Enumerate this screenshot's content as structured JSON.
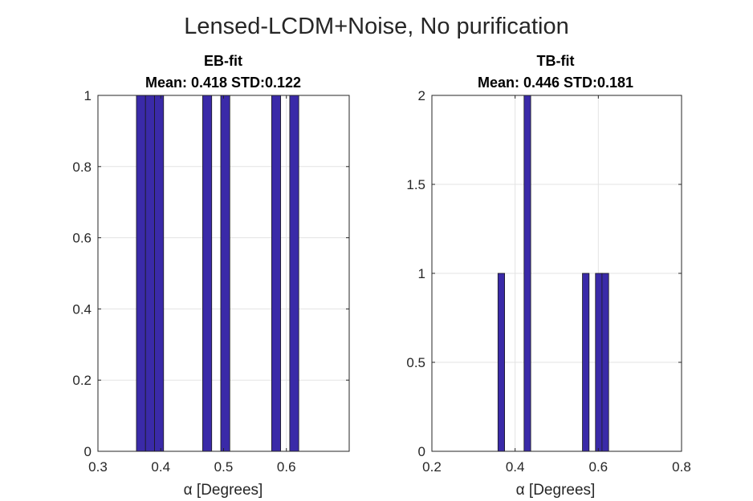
{
  "figure": {
    "suptitle": "Lensed-LCDM+Noise, No purification"
  },
  "chart_data": [
    {
      "type": "bar",
      "title_line1": "EB-fit",
      "title_line2": "Mean: 0.418 STD:0.122",
      "xlabel": "α [Degrees]",
      "ylabel": "",
      "xlim": [
        0.3,
        0.7
      ],
      "ylim": [
        0,
        1
      ],
      "xticks": [
        0.3,
        0.4,
        0.5,
        0.6
      ],
      "xtick_labels": [
        "0.3",
        "0.4",
        "0.5",
        "0.6"
      ],
      "yticks": [
        0,
        0.2,
        0.4,
        0.6,
        0.8,
        1
      ],
      "ytick_labels": [
        "0",
        "0.2",
        "0.4",
        "0.6",
        "0.8",
        "1"
      ],
      "grid": true,
      "bar_color": "#3a2aa8",
      "bin_width": 0.0144,
      "bins": [
        {
          "left": 0.3613,
          "count": 1
        },
        {
          "left": 0.3757,
          "count": 1
        },
        {
          "left": 0.3901,
          "count": 1
        },
        {
          "left": 0.4667,
          "count": 1
        },
        {
          "left": 0.4955,
          "count": 1
        },
        {
          "left": 0.5765,
          "count": 1
        },
        {
          "left": 0.6053,
          "count": 1
        }
      ]
    },
    {
      "type": "bar",
      "title_line1": "TB-fit",
      "title_line2": "Mean: 0.446 STD:0.181",
      "xlabel": "α [Degrees]",
      "ylabel": "",
      "xlim": [
        0.2,
        0.8
      ],
      "ylim": [
        0,
        2
      ],
      "xticks": [
        0.2,
        0.4,
        0.6,
        0.8
      ],
      "xtick_labels": [
        "0.2",
        "0.4",
        "0.6",
        "0.8"
      ],
      "yticks": [
        0,
        0.5,
        1,
        1.5,
        2
      ],
      "ytick_labels": [
        "0",
        "0.5",
        "1",
        "1.5",
        "2"
      ],
      "grid": true,
      "bar_color": "#3a2aa8",
      "bin_width": 0.016,
      "range": [
        0.3,
        0.7
      ],
      "bins": [
        {
          "left": 0.3588,
          "count": 1
        },
        {
          "left": 0.4215,
          "count": 2
        },
        {
          "left": 0.5618,
          "count": 1
        },
        {
          "left": 0.5931,
          "count": 1
        },
        {
          "left": 0.6088,
          "count": 1
        }
      ]
    }
  ]
}
